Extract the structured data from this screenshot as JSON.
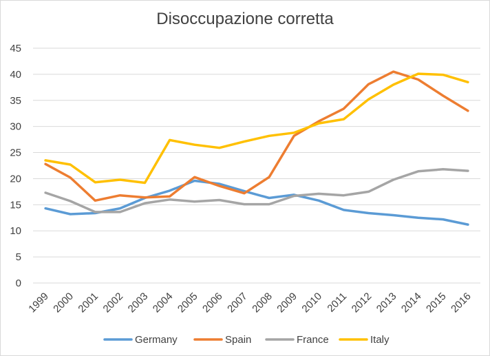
{
  "chart_data": {
    "type": "line",
    "title": "Disoccupazione corretta",
    "xlabel": "",
    "ylabel": "",
    "ylim": [
      0,
      45
    ],
    "y_ticks": [
      "0",
      "5",
      "10",
      "15",
      "20",
      "25",
      "30",
      "35",
      "40",
      "45"
    ],
    "categories": [
      "1999",
      "2000",
      "2001",
      "2002",
      "2003",
      "2004",
      "2005",
      "2006",
      "2007",
      "2008",
      "2009",
      "2010",
      "2011",
      "2012",
      "2013",
      "2014",
      "2015",
      "2016"
    ],
    "grid": true,
    "legend_position": "bottom",
    "series": [
      {
        "name": "Germany",
        "color": "#5b9bd5",
        "values": [
          14.3,
          13.2,
          13.4,
          14.3,
          16.3,
          17.7,
          19.6,
          19.0,
          17.6,
          16.3,
          16.9,
          15.8,
          14.0,
          13.4,
          13.0,
          12.5,
          12.2,
          11.2
        ]
      },
      {
        "name": "Spain",
        "color": "#ed7d31",
        "values": [
          22.8,
          20.2,
          15.8,
          16.8,
          16.4,
          16.6,
          20.3,
          18.6,
          17.2,
          20.3,
          28.2,
          31.0,
          33.4,
          38.1,
          40.5,
          39.0,
          35.9,
          33.0
        ]
      },
      {
        "name": "France",
        "color": "#a5a5a5",
        "values": [
          17.3,
          15.7,
          13.6,
          13.6,
          15.3,
          16.0,
          15.6,
          15.9,
          15.1,
          15.1,
          16.7,
          17.1,
          16.8,
          17.5,
          19.8,
          21.4,
          21.8,
          21.5
        ]
      },
      {
        "name": "Italy",
        "color": "#ffc000",
        "values": [
          23.5,
          22.7,
          19.3,
          19.8,
          19.2,
          27.4,
          26.5,
          25.9,
          27.1,
          28.2,
          28.8,
          30.6,
          31.4,
          35.2,
          38.0,
          40.1,
          39.9,
          38.5
        ]
      }
    ]
  }
}
